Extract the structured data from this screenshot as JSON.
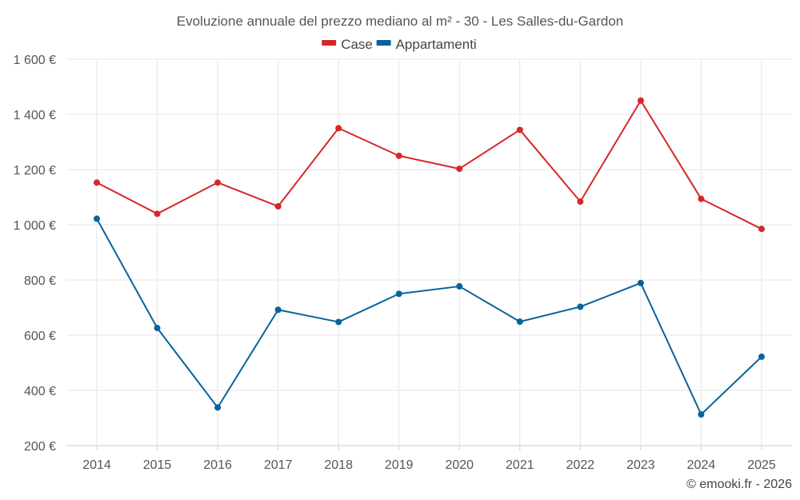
{
  "chart_data": {
    "type": "line",
    "title": "Evoluzione annuale del prezzo mediano al m² - 30 - Les Salles-du-Gardon",
    "categories": [
      "2014",
      "2015",
      "2016",
      "2017",
      "2018",
      "2019",
      "2020",
      "2021",
      "2022",
      "2023",
      "2024",
      "2025"
    ],
    "series": [
      {
        "name": "Case",
        "color": "#d62728",
        "values": [
          1153,
          1040,
          1153,
          1067,
          1350,
          1250,
          1203,
          1344,
          1084,
          1450,
          1094,
          985
        ]
      },
      {
        "name": "Appartamenti",
        "color": "#08639c",
        "values": [
          1022,
          626,
          338,
          692,
          648,
          750,
          777,
          649,
          703,
          789,
          313,
          522
        ]
      }
    ],
    "ylim": [
      200,
      1600
    ],
    "yticks": [
      {
        "value": 200,
        "label": "200 €"
      },
      {
        "value": 400,
        "label": "400 €"
      },
      {
        "value": 600,
        "label": "600 €"
      },
      {
        "value": 800,
        "label": "800 €"
      },
      {
        "value": 1000,
        "label": "1 000 €"
      },
      {
        "value": 1200,
        "label": "1 200 €"
      },
      {
        "value": 1400,
        "label": "1 400 €"
      },
      {
        "value": 1600,
        "label": "1 600 €"
      }
    ],
    "xlabel": "",
    "ylabel": "",
    "grid": true,
    "legend_position": "top-center",
    "credit": "© emooki.fr - 2026"
  }
}
